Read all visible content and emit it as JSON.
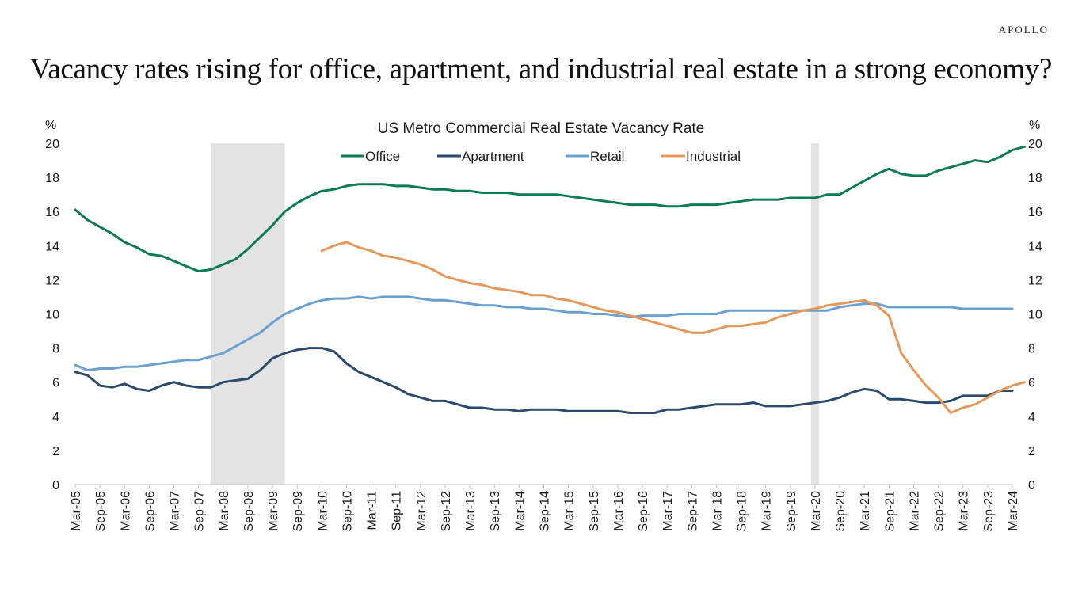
{
  "brand": "APOLLO",
  "headline": "Vacancy rates rising for office, apartment, and industrial real estate in a strong economy?",
  "chart_data": {
    "type": "line",
    "title": "US Metro Commercial Real Estate Vacancy Rate",
    "ylabel_left": "%",
    "ylabel_right": "%",
    "ylim": [
      0,
      20
    ],
    "yticks": [
      0,
      2,
      4,
      6,
      8,
      10,
      12,
      14,
      16,
      18,
      20
    ],
    "xlim": [
      "Mar-05",
      "Mar-24"
    ],
    "xtick_labels": [
      "Mar-05",
      "Sep-05",
      "Mar-06",
      "Sep-06",
      "Mar-07",
      "Sep-07",
      "Mar-08",
      "Sep-08",
      "Mar-09",
      "Sep-09",
      "Mar-10",
      "Sep-10",
      "Mar-11",
      "Sep-11",
      "Mar-12",
      "Sep-12",
      "Mar-13",
      "Sep-13",
      "Mar-14",
      "Sep-14",
      "Mar-15",
      "Sep-15",
      "Mar-16",
      "Sep-16",
      "Mar-17",
      "Sep-17",
      "Mar-18",
      "Sep-18",
      "Mar-19",
      "Sep-19",
      "Mar-20",
      "Sep-20",
      "Mar-21",
      "Sep-21",
      "Mar-22",
      "Sep-22",
      "Mar-23",
      "Sep-23",
      "Mar-24"
    ],
    "x_frequency": "quarterly",
    "recession_shading": [
      {
        "start": "Dec-07",
        "end": "Jun-09"
      },
      {
        "start": "Feb-20",
        "end": "Apr-20"
      }
    ],
    "legend_position": "top-center",
    "grid": false,
    "series": [
      {
        "name": "Office",
        "color": "#0b7a57",
        "start": "Mar-05",
        "values": [
          16.1,
          15.5,
          15.1,
          14.7,
          14.2,
          13.9,
          13.5,
          13.4,
          13.1,
          12.8,
          12.5,
          12.6,
          12.9,
          13.2,
          13.8,
          14.5,
          15.2,
          16.0,
          16.5,
          16.9,
          17.2,
          17.3,
          17.5,
          17.6,
          17.6,
          17.6,
          17.5,
          17.5,
          17.4,
          17.3,
          17.3,
          17.2,
          17.2,
          17.1,
          17.1,
          17.1,
          17.0,
          17.0,
          17.0,
          17.0,
          16.9,
          16.8,
          16.7,
          16.6,
          16.5,
          16.4,
          16.4,
          16.4,
          16.3,
          16.3,
          16.4,
          16.4,
          16.4,
          16.5,
          16.6,
          16.7,
          16.7,
          16.7,
          16.8,
          16.8,
          16.8,
          17.0,
          17.0,
          17.4,
          17.8,
          18.2,
          18.5,
          18.2,
          18.1,
          18.1,
          18.4,
          18.6,
          18.8,
          19.0,
          18.9,
          19.2,
          19.6,
          19.8
        ]
      },
      {
        "name": "Apartment",
        "color": "#2b4a6b",
        "start": "Mar-05",
        "values": [
          6.6,
          6.4,
          5.8,
          5.7,
          5.9,
          5.6,
          5.5,
          5.8,
          6.0,
          5.8,
          5.7,
          5.7,
          6.0,
          6.1,
          6.2,
          6.7,
          7.4,
          7.7,
          7.9,
          8.0,
          8.0,
          7.8,
          7.1,
          6.6,
          6.3,
          6.0,
          5.7,
          5.3,
          5.1,
          4.9,
          4.9,
          4.7,
          4.5,
          4.5,
          4.4,
          4.4,
          4.3,
          4.4,
          4.4,
          4.4,
          4.3,
          4.3,
          4.3,
          4.3,
          4.3,
          4.2,
          4.2,
          4.2,
          4.4,
          4.4,
          4.5,
          4.6,
          4.7,
          4.7,
          4.7,
          4.8,
          4.6,
          4.6,
          4.6,
          4.7,
          4.8,
          4.9,
          5.1,
          5.4,
          5.6,
          5.5,
          5.0,
          5.0,
          4.9,
          4.8,
          4.8,
          4.9,
          5.2,
          5.2,
          5.2,
          5.5,
          5.5
        ]
      },
      {
        "name": "Retail",
        "color": "#6a9fd0",
        "start": "Mar-05",
        "values": [
          7.0,
          6.7,
          6.8,
          6.8,
          6.9,
          6.9,
          7.0,
          7.1,
          7.2,
          7.3,
          7.3,
          7.5,
          7.7,
          8.1,
          8.5,
          8.9,
          9.5,
          10.0,
          10.3,
          10.6,
          10.8,
          10.9,
          10.9,
          11.0,
          10.9,
          11.0,
          11.0,
          11.0,
          10.9,
          10.8,
          10.8,
          10.7,
          10.6,
          10.5,
          10.5,
          10.4,
          10.4,
          10.3,
          10.3,
          10.2,
          10.1,
          10.1,
          10.0,
          10.0,
          9.9,
          9.8,
          9.9,
          9.9,
          9.9,
          10.0,
          10.0,
          10.0,
          10.0,
          10.2,
          10.2,
          10.2,
          10.2,
          10.2,
          10.2,
          10.2,
          10.2,
          10.2,
          10.4,
          10.5,
          10.6,
          10.6,
          10.4,
          10.4,
          10.4,
          10.4,
          10.4,
          10.4,
          10.3,
          10.3,
          10.3,
          10.3,
          10.3
        ]
      },
      {
        "name": "Industrial",
        "color": "#e6985a",
        "start": "Mar-10",
        "values": [
          13.7,
          14.0,
          14.2,
          13.9,
          13.7,
          13.4,
          13.3,
          13.1,
          12.9,
          12.6,
          12.2,
          12.0,
          11.8,
          11.7,
          11.5,
          11.4,
          11.3,
          11.1,
          11.1,
          10.9,
          10.8,
          10.6,
          10.4,
          10.2,
          10.1,
          9.9,
          9.7,
          9.5,
          9.3,
          9.1,
          8.9,
          8.9,
          9.1,
          9.3,
          9.3,
          9.4,
          9.5,
          9.8,
          10.0,
          10.2,
          10.3,
          10.5,
          10.6,
          10.7,
          10.8,
          10.5,
          9.9,
          7.7,
          6.7,
          5.8,
          5.1,
          4.2,
          4.5,
          4.7,
          5.1,
          5.5,
          5.8,
          6.0
        ]
      }
    ]
  }
}
